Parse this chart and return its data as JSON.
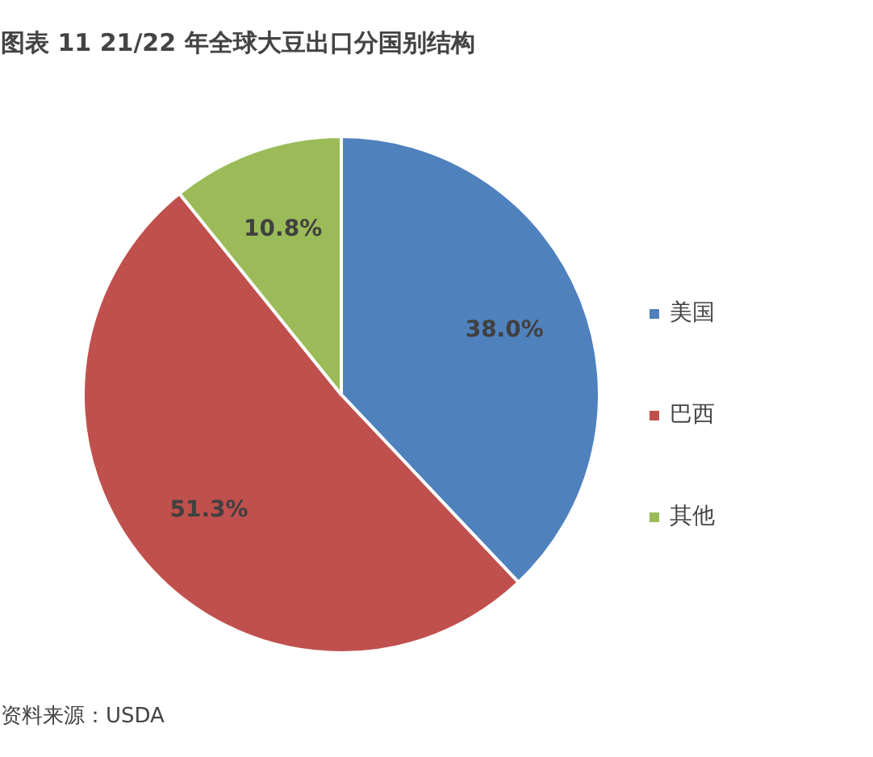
{
  "chart_data": {
    "type": "pie",
    "title": "图表 11 21/22 年全球大豆出口分国别结构",
    "categories": [
      "美国",
      "巴西",
      "其他"
    ],
    "values": [
      38.0,
      51.3,
      10.8
    ],
    "colors": [
      "#4f81bd",
      "#c0504d",
      "#9bbb59"
    ],
    "value_labels": [
      "38.0%",
      "51.3%",
      "10.8%"
    ],
    "legend": "right",
    "annotations": [
      "资料来源：USDA"
    ]
  }
}
